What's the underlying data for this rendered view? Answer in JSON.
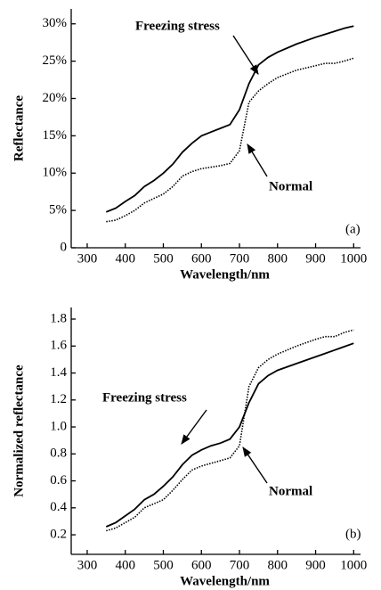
{
  "chart_data": [
    {
      "type": "line",
      "label": "(a)",
      "y_label": "Reflectance",
      "x_label": "Wavelength/nm",
      "x": [
        350,
        375,
        400,
        425,
        450,
        475,
        500,
        525,
        550,
        575,
        600,
        625,
        650,
        675,
        700,
        725,
        750,
        775,
        800,
        850,
        900,
        925,
        950,
        975,
        1000
      ],
      "series": [
        {
          "name": "Freezing stress",
          "color": "#000000",
          "style": "solid",
          "values": [
            4.8,
            5.3,
            6.2,
            7.0,
            8.2,
            9.0,
            10.0,
            11.2,
            12.8,
            14.0,
            15.0,
            15.5,
            16.0,
            16.5,
            18.5,
            22.0,
            24.5,
            25.5,
            26.2,
            27.3,
            28.2,
            28.6,
            29.0,
            29.4,
            29.7
          ]
        },
        {
          "name": "Normal",
          "color": "#000000",
          "style": "dotted",
          "values": [
            3.5,
            3.7,
            4.3,
            5.0,
            6.0,
            6.6,
            7.2,
            8.2,
            9.6,
            10.2,
            10.6,
            10.8,
            11.0,
            11.3,
            13.0,
            19.5,
            21.0,
            22.0,
            22.8,
            23.8,
            24.4,
            24.7,
            24.7,
            25.0,
            25.4
          ]
        }
      ],
      "xlim": [
        258,
        1018
      ],
      "xticks": [
        300,
        400,
        500,
        600,
        700,
        800,
        900,
        1000
      ],
      "ylim": [
        0,
        32
      ],
      "yticks": [
        0,
        {
          "value": 5,
          "label": "5%"
        },
        {
          "value": 10,
          "label": "10%"
        },
        {
          "value": 15,
          "label": "15%"
        },
        {
          "value": 20,
          "label": "20%"
        },
        {
          "value": 25,
          "label": "25%"
        },
        {
          "value": 30,
          "label": "30%"
        }
      ]
    },
    {
      "type": "line",
      "label": "(b)",
      "y_label": "Normalized reflectance",
      "x_label": "Wavelength/nm",
      "x": [
        350,
        375,
        400,
        425,
        450,
        475,
        500,
        525,
        550,
        575,
        600,
        625,
        650,
        675,
        700,
        725,
        750,
        775,
        800,
        850,
        900,
        925,
        950,
        975,
        1000
      ],
      "series": [
        {
          "name": "Freezing stress",
          "color": "#000000",
          "style": "solid",
          "values": [
            0.26,
            0.29,
            0.34,
            0.39,
            0.46,
            0.5,
            0.56,
            0.63,
            0.72,
            0.79,
            0.83,
            0.86,
            0.88,
            0.91,
            1.0,
            1.18,
            1.32,
            1.38,
            1.42,
            1.47,
            1.52,
            1.545,
            1.57,
            1.595,
            1.62
          ]
        },
        {
          "name": "Normal",
          "color": "#000000",
          "style": "dotted",
          "values": [
            0.23,
            0.25,
            0.29,
            0.33,
            0.4,
            0.43,
            0.46,
            0.53,
            0.61,
            0.68,
            0.71,
            0.73,
            0.75,
            0.77,
            0.86,
            1.3,
            1.44,
            1.5,
            1.54,
            1.6,
            1.65,
            1.67,
            1.67,
            1.7,
            1.72
          ]
        }
      ],
      "xlim": [
        258,
        1018
      ],
      "xticks": [
        300,
        400,
        500,
        600,
        700,
        800,
        900,
        1000
      ],
      "ylim": [
        0.055,
        1.886
      ],
      "yticks": [
        0.2,
        0.4,
        0.6,
        0.8,
        {
          "value": 1,
          "label": "1.0"
        },
        1.2,
        1.4,
        1.6,
        1.8
      ]
    }
  ]
}
